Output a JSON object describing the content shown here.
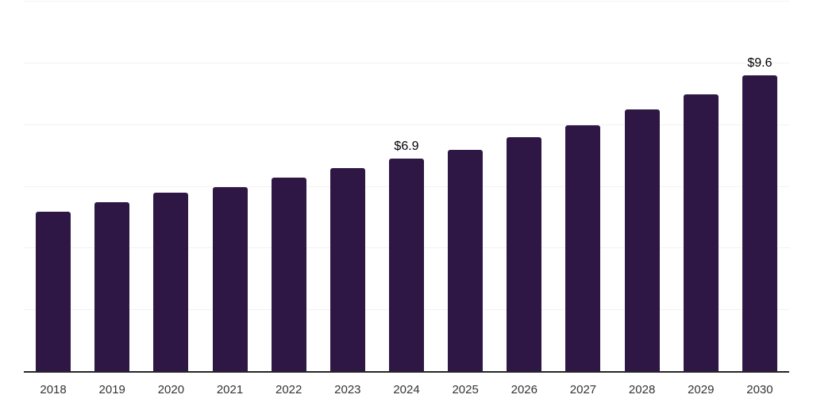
{
  "chart_data": {
    "type": "bar",
    "title": "",
    "xlabel": "",
    "ylabel": "",
    "categories": [
      "2018",
      "2019",
      "2020",
      "2021",
      "2022",
      "2023",
      "2024",
      "2025",
      "2026",
      "2027",
      "2028",
      "2029",
      "2030"
    ],
    "values": [
      5.2,
      5.5,
      5.8,
      6.0,
      6.3,
      6.6,
      6.9,
      7.2,
      7.6,
      8.0,
      8.5,
      9.0,
      9.6
    ],
    "point_labels": {
      "2024": "$6.9",
      "2030": "$9.6"
    },
    "ylim": [
      0,
      12
    ],
    "grid_step": 2,
    "grid_visible": true,
    "legend_visible": false,
    "colors": {
      "bar": "#2f1745",
      "gridline": "#f2f2f4",
      "axis_line": "#262626",
      "tick_label": "#333333",
      "value_label": "#000000",
      "background": "#ffffff"
    }
  }
}
